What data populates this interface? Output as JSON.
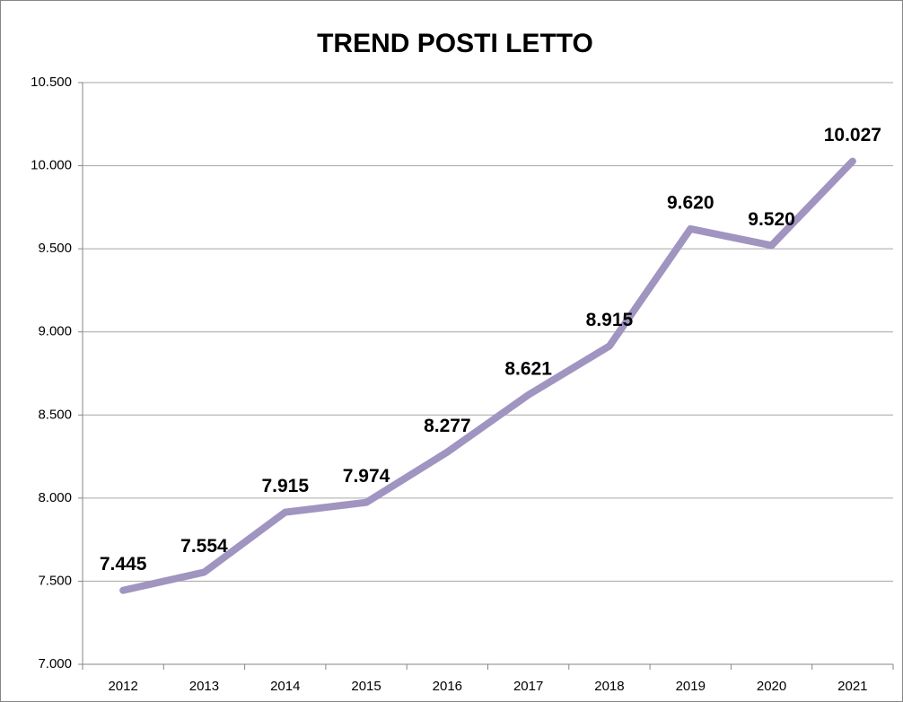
{
  "chart_data": {
    "type": "line",
    "title": "TREND POSTI LETTO",
    "categories": [
      "2012",
      "2013",
      "2014",
      "2015",
      "2016",
      "2017",
      "2018",
      "2019",
      "2020",
      "2021"
    ],
    "values": [
      7445,
      7554,
      7915,
      7974,
      8277,
      8621,
      8915,
      9620,
      9520,
      10027
    ],
    "value_labels": [
      "7.445",
      "7.554",
      "7.915",
      "7.974",
      "8.277",
      "8.621",
      "8.915",
      "9.620",
      "9.520",
      "10.027"
    ],
    "color": "#a094c0",
    "ylim": [
      7000,
      10500
    ],
    "yticks": [
      {
        "value": 7000,
        "label": "7.000"
      },
      {
        "value": 7500,
        "label": "7.500"
      },
      {
        "value": 8000,
        "label": "8.000"
      },
      {
        "value": 8500,
        "label": "8.500"
      },
      {
        "value": 9000,
        "label": "9.000"
      },
      {
        "value": 9500,
        "label": "9.500"
      },
      {
        "value": 10000,
        "label": "10.000"
      },
      {
        "value": 10500,
        "label": "10.500"
      }
    ],
    "grid": true
  }
}
